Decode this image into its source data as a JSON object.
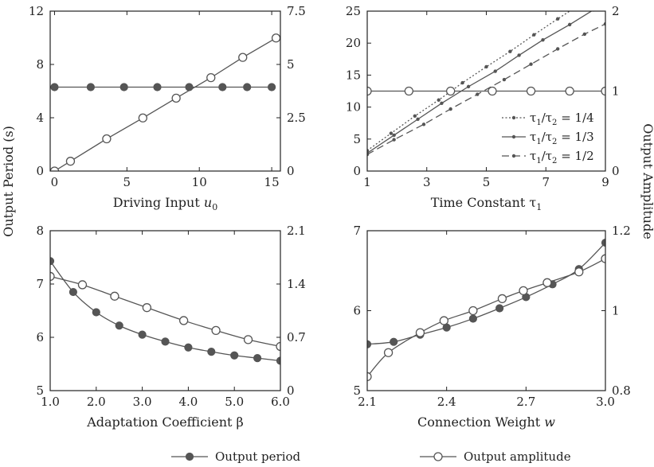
{
  "colors": {
    "ink": "#222222",
    "series": "#555555",
    "marker_fill": "#555555",
    "open_fill": "#ffffff"
  },
  "figure": {
    "ylabel_left": "Output Period (s)",
    "ylabel_right": "Output Amplitude",
    "legend": {
      "period": "Output period",
      "amplitude": "Output amplitude"
    }
  },
  "chart_data": [
    {
      "type": "line",
      "xlabel_text": "Driving Input ",
      "xlabel_var": "u",
      "xlabel_sub": "0",
      "xlim": [
        -0.3,
        15.6
      ],
      "xticks": [
        0,
        5,
        10,
        15
      ],
      "xtick_labels": [
        "0",
        "5",
        "10",
        "15"
      ],
      "ylim_left": [
        0,
        12
      ],
      "yticks_left": [
        0,
        4,
        8,
        12
      ],
      "ytick_labels_left": [
        "0",
        "4",
        "8",
        "12"
      ],
      "ylim_right": [
        0,
        7.5
      ],
      "yticks_right": [
        0,
        2.5,
        5,
        7.5
      ],
      "ytick_labels_right": [
        "0",
        "2.5",
        "5",
        "7.5"
      ],
      "series": [
        {
          "key": "period",
          "axis": "left",
          "marker": "filled",
          "line": "solid",
          "curve": "linear",
          "x": [
            0,
            2.5,
            4.8,
            7.1,
            9.3,
            11.6,
            13.3,
            15
          ],
          "y": [
            6.3,
            6.3,
            6.3,
            6.3,
            6.3,
            6.3,
            6.3,
            6.3
          ]
        },
        {
          "key": "amplitude",
          "axis": "right",
          "marker": "open",
          "line": "solid",
          "curve": "linear",
          "x": [
            0,
            1.1,
            3.6,
            6.1,
            8.4,
            10.8,
            13.0,
            15.3
          ],
          "y": [
            0,
            0.46,
            1.51,
            2.49,
            3.42,
            4.38,
            5.33,
            6.24
          ]
        }
      ]
    },
    {
      "type": "line",
      "xlabel_text": "Time Constant τ",
      "xlabel_sub": "1",
      "xlim": [
        1,
        9
      ],
      "xticks": [
        1,
        3,
        5,
        7,
        9
      ],
      "xtick_labels": [
        "1",
        "3",
        "5",
        "7",
        "9"
      ],
      "ylim_left": [
        0,
        25
      ],
      "yticks_left": [
        0,
        5,
        10,
        15,
        20,
        25
      ],
      "ytick_labels_left": [
        "0",
        "5",
        "10",
        "15",
        "20",
        "25"
      ],
      "ylim_right": [
        0,
        2
      ],
      "yticks_right": [
        0,
        1,
        2
      ],
      "ytick_labels_right": [
        "0",
        "1",
        "2"
      ],
      "series": [
        {
          "key": "r14",
          "axis": "left",
          "marker": "small",
          "line": "dotted",
          "curve": "linear",
          "x": [
            1,
            1.8,
            2.6,
            3.4,
            4.2,
            5,
            5.8,
            6.6,
            7.4,
            8.2
          ],
          "y": [
            3.2,
            5.9,
            8.6,
            11.1,
            13.8,
            16.3,
            18.7,
            21.3,
            23.8,
            26.2
          ]
        },
        {
          "key": "r13",
          "axis": "left",
          "marker": "small",
          "line": "solid",
          "curve": "linear",
          "x": [
            1,
            1.9,
            2.7,
            3.5,
            4.4,
            5.3,
            6.1,
            6.9,
            7.8,
            8.6
          ],
          "y": [
            2.8,
            5.6,
            8.1,
            10.6,
            13.2,
            15.6,
            18.1,
            20.5,
            22.9,
            25.2
          ]
        },
        {
          "key": "r12",
          "axis": "left",
          "marker": "small",
          "line": "dashed",
          "curve": "linear",
          "x": [
            1,
            1.9,
            2.9,
            3.8,
            4.7,
            5.6,
            6.5,
            7.4,
            8.3,
            9
          ],
          "y": [
            2.6,
            4.9,
            7.3,
            9.7,
            12.0,
            14.3,
            16.7,
            19.1,
            21.4,
            23.0
          ]
        },
        {
          "key": "amp",
          "axis": "right",
          "marker": "open",
          "line": "solid",
          "curve": "linear",
          "x": [
            1,
            2.4,
            3.8,
            5.2,
            6.5,
            7.8,
            9
          ],
          "y": [
            1,
            1,
            1,
            1,
            1,
            1,
            1
          ]
        }
      ],
      "legend_entries": [
        {
          "key": "r14",
          "line": "dotted",
          "t1": "τ",
          "s1": "1",
          "mid": "/τ",
          "s2": "2",
          "eq": " = 1/4"
        },
        {
          "key": "r13",
          "line": "solid",
          "t1": "τ",
          "s1": "1",
          "mid": "/τ",
          "s2": "2",
          "eq": " = 1/3"
        },
        {
          "key": "r12",
          "line": "dashed",
          "t1": "τ",
          "s1": "1",
          "mid": "/τ",
          "s2": "2",
          "eq": " = 1/2"
        }
      ],
      "legend_placement": "bottom-right"
    },
    {
      "type": "line",
      "xlabel_text": "Adaptation Coefficient β",
      "xlim": [
        1,
        6
      ],
      "xticks": [
        1,
        2,
        3,
        4,
        5,
        6
      ],
      "xtick_labels": [
        "1.0",
        "2.0",
        "3.0",
        "4.0",
        "5.0",
        "6.0"
      ],
      "ylim_left": [
        5,
        8
      ],
      "yticks_left": [
        5,
        6,
        7,
        8
      ],
      "ytick_labels_left": [
        "5",
        "6",
        "7",
        "8"
      ],
      "ylim_right": [
        0,
        2.1
      ],
      "yticks_right": [
        0,
        0.7,
        1.4,
        2.1
      ],
      "ytick_labels_right": [
        "0",
        "0.7",
        "1.4",
        "2.1"
      ],
      "series": [
        {
          "key": "period",
          "axis": "left",
          "marker": "filled",
          "line": "solid",
          "curve": "smooth",
          "x": [
            1.0,
            1.5,
            2.0,
            2.5,
            3.0,
            3.5,
            4.0,
            4.5,
            5.0,
            5.5,
            6.0
          ],
          "y": [
            7.43,
            6.85,
            6.47,
            6.22,
            6.05,
            5.92,
            5.81,
            5.73,
            5.66,
            5.61,
            5.56
          ]
        },
        {
          "key": "amplitude",
          "axis": "right",
          "marker": "open",
          "line": "solid",
          "curve": "smooth",
          "x": [
            1.0,
            1.7,
            2.4,
            3.1,
            3.9,
            4.6,
            5.3,
            6.0
          ],
          "y": [
            1.5,
            1.39,
            1.24,
            1.09,
            0.92,
            0.79,
            0.67,
            0.58
          ]
        }
      ]
    },
    {
      "type": "line",
      "xlabel_text": "Connection  Weight ",
      "xlabel_var": "w",
      "xlim": [
        2.1,
        3.0
      ],
      "xticks": [
        2.1,
        2.4,
        2.7,
        3.0
      ],
      "xtick_labels": [
        "2.1",
        "2.4",
        "2.7",
        "3.0"
      ],
      "ylim_left": [
        5,
        7
      ],
      "yticks_left": [
        5,
        6,
        7
      ],
      "ytick_labels_left": [
        "5",
        "6",
        "7"
      ],
      "ylim_right": [
        0.8,
        1.2
      ],
      "yticks_right": [
        0.8,
        1,
        1.2
      ],
      "ytick_labels_right": [
        "0.8",
        "1",
        "1.2"
      ],
      "series": [
        {
          "key": "period",
          "axis": "left",
          "marker": "filled",
          "line": "solid",
          "curve": "smooth",
          "x": [
            2.1,
            2.2,
            2.3,
            2.4,
            2.5,
            2.6,
            2.7,
            2.8,
            2.9,
            3.0
          ],
          "y": [
            5.58,
            5.61,
            5.7,
            5.79,
            5.9,
            6.03,
            6.17,
            6.33,
            6.52,
            6.85
          ]
        },
        {
          "key": "amplitude",
          "axis": "right",
          "marker": "open",
          "line": "solid",
          "curve": "smooth",
          "x": [
            2.1,
            2.18,
            2.3,
            2.39,
            2.5,
            2.61,
            2.69,
            2.78,
            2.9,
            3.0
          ],
          "y": [
            0.835,
            0.895,
            0.945,
            0.975,
            1.0,
            1.03,
            1.05,
            1.07,
            1.097,
            1.13
          ]
        }
      ]
    }
  ]
}
